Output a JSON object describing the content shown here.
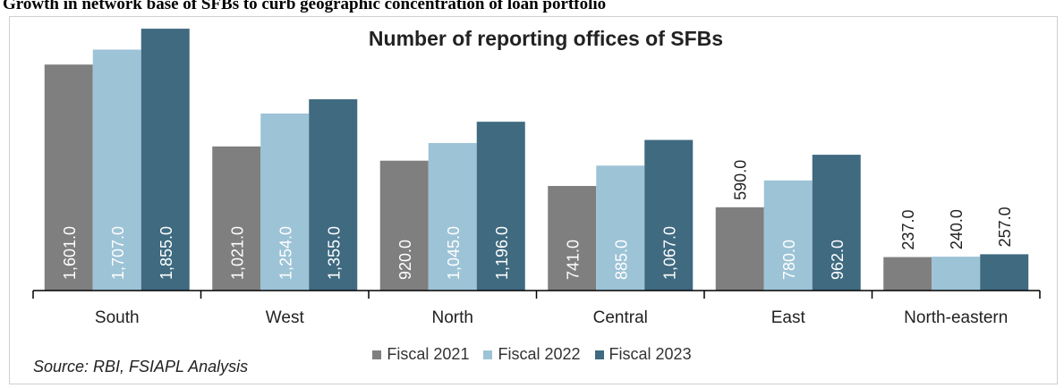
{
  "page_heading": "Growth in network base of SFBs to curb geographic concentration of loan portfolio",
  "source": "Source: RBI, FSIAPL Analysis",
  "chart_data": {
    "type": "bar",
    "title": "Number of reporting offices of SFBs",
    "xlabel": "",
    "ylabel": "",
    "ylim": [
      0,
      1900
    ],
    "grid": false,
    "legend_position": "bottom",
    "categories": [
      "South",
      "West",
      "North",
      "Central",
      "East",
      "North-eastern"
    ],
    "series": [
      {
        "name": "Fiscal 2021",
        "color": "#7f7f7f",
        "values": [
          1601.0,
          1021.0,
          920.0,
          741.0,
          590.0,
          237.0
        ],
        "labels": [
          "1,601.0",
          "1,021.0",
          "920.0",
          "741.0",
          "590.0",
          "237.0"
        ]
      },
      {
        "name": "Fiscal 2022",
        "color": "#9dc3d6",
        "values": [
          1707.0,
          1254.0,
          1045.0,
          885.0,
          780.0,
          240.0
        ],
        "labels": [
          "1,707.0",
          "1,254.0",
          "1,045.0",
          "885.0",
          "780.0",
          "240.0"
        ]
      },
      {
        "name": "Fiscal 2023",
        "color": "#3f6a80",
        "values": [
          1855.0,
          1355.0,
          1196.0,
          1067.0,
          962.0,
          257.0
        ],
        "labels": [
          "1,855.0",
          "1,355.0",
          "1,196.0",
          "1,067.0",
          "962.0",
          "257.0"
        ]
      }
    ]
  }
}
